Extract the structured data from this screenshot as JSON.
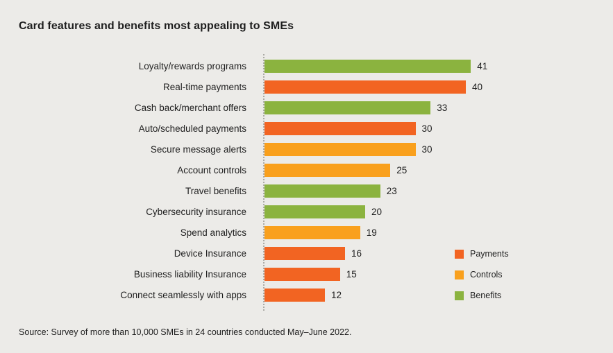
{
  "page": {
    "background": "#ECEBE8",
    "text_color": "#1E1E1E"
  },
  "header": {
    "title": "Card features and benefits most appealing to SMEs"
  },
  "legend": {
    "items": [
      {
        "name": "Payments",
        "color": "#F26422"
      },
      {
        "name": "Controls",
        "color": "#F9A01D"
      },
      {
        "name": "Benefits",
        "color": "#8BB33F"
      }
    ]
  },
  "chart_data": {
    "type": "bar",
    "orientation": "horizontal",
    "title": "Card features and benefits most appealing to SMEs",
    "categories": [
      "Loyalty/rewards programs",
      "Real-time payments",
      "Cash back/merchant offers",
      "Auto/scheduled payments",
      "Secure message alerts",
      "Account controls",
      "Travel benefits",
      "Cybersecurity insurance",
      "Spend analytics",
      "Device Insurance",
      "Business liability Insurance",
      "Connect seamlessly with apps"
    ],
    "values": [
      41,
      40,
      33,
      30,
      30,
      25,
      23,
      20,
      19,
      16,
      15,
      12
    ],
    "bar_groups": [
      "Benefits",
      "Payments",
      "Benefits",
      "Payments",
      "Controls",
      "Controls",
      "Benefits",
      "Benefits",
      "Controls",
      "Payments",
      "Payments",
      "Payments"
    ],
    "value_labels_shown": true,
    "xlim": [
      0,
      45
    ],
    "grid": false,
    "axis_baseline_style": "dotted",
    "legend_position": "bottom-right"
  },
  "footer": {
    "source": "Source: Survey of more than 10,000 SMEs in 24 countries conducted May–June 2022."
  }
}
